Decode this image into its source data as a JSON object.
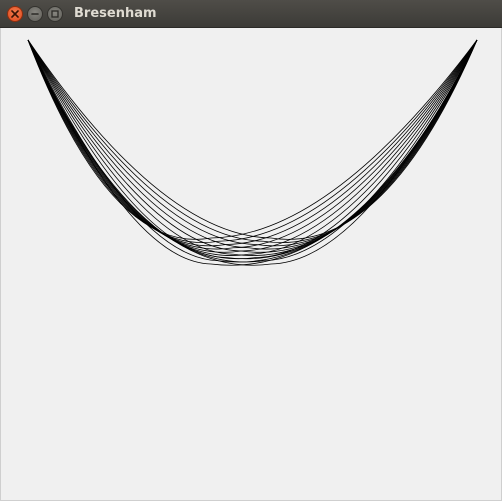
{
  "window": {
    "title": "Bresenham"
  },
  "titlebar_buttons": [
    {
      "name": "close",
      "icon": "close-icon"
    },
    {
      "name": "minimize",
      "icon": "minimize-icon"
    },
    {
      "name": "maximize",
      "icon": "maximize-icon"
    }
  ],
  "drawing": {
    "line_color": "#000000",
    "background_color": "#f0f0f0"
  }
}
